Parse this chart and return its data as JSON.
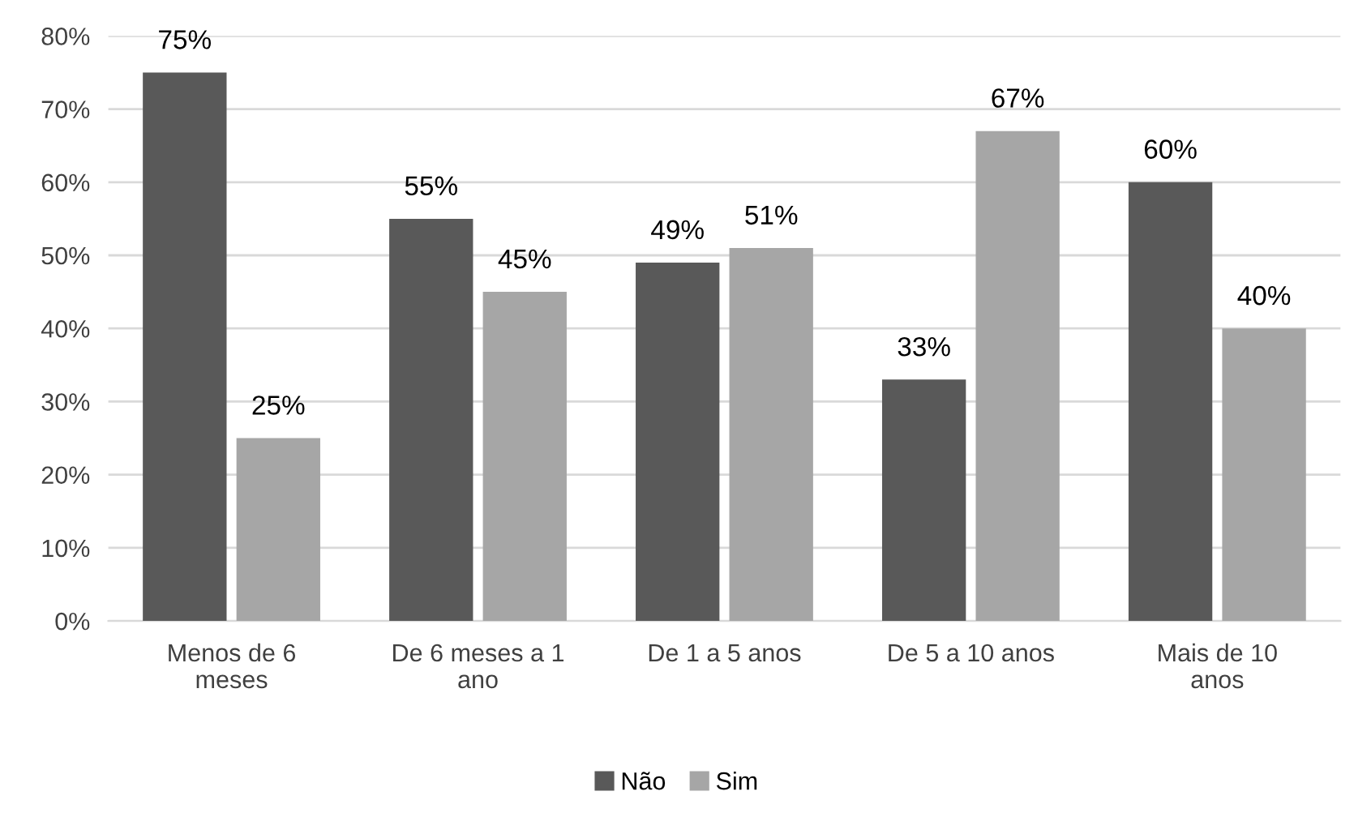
{
  "chart_data": {
    "type": "bar",
    "categories": [
      "Menos de 6 meses",
      "De 6 meses a 1 ano",
      "De 1 a 5 anos",
      "De 5 a 10 anos",
      "Mais de 10 anos"
    ],
    "series": [
      {
        "name": "Não",
        "color": "#595959",
        "values": [
          75,
          55,
          49,
          33,
          60
        ],
        "value_labels": [
          "75%",
          "55%",
          "49%",
          "33%",
          "60%"
        ]
      },
      {
        "name": "Sim",
        "color": "#a6a6a6",
        "values": [
          25,
          45,
          51,
          67,
          40
        ],
        "value_labels": [
          "25%",
          "45%",
          "51%",
          "67%",
          "40%"
        ]
      }
    ],
    "ylim": [
      0,
      80
    ],
    "yticks": [
      {
        "value": 0,
        "label": "0%"
      },
      {
        "value": 10,
        "label": "10%"
      },
      {
        "value": 20,
        "label": "20%"
      },
      {
        "value": 30,
        "label": "30%"
      },
      {
        "value": 40,
        "label": "40%"
      },
      {
        "value": 50,
        "label": "50%"
      },
      {
        "value": 60,
        "label": "60%"
      },
      {
        "value": 70,
        "label": "70%"
      },
      {
        "value": 80,
        "label": "80%"
      }
    ],
    "grid": "y",
    "legend": "bottom"
  }
}
